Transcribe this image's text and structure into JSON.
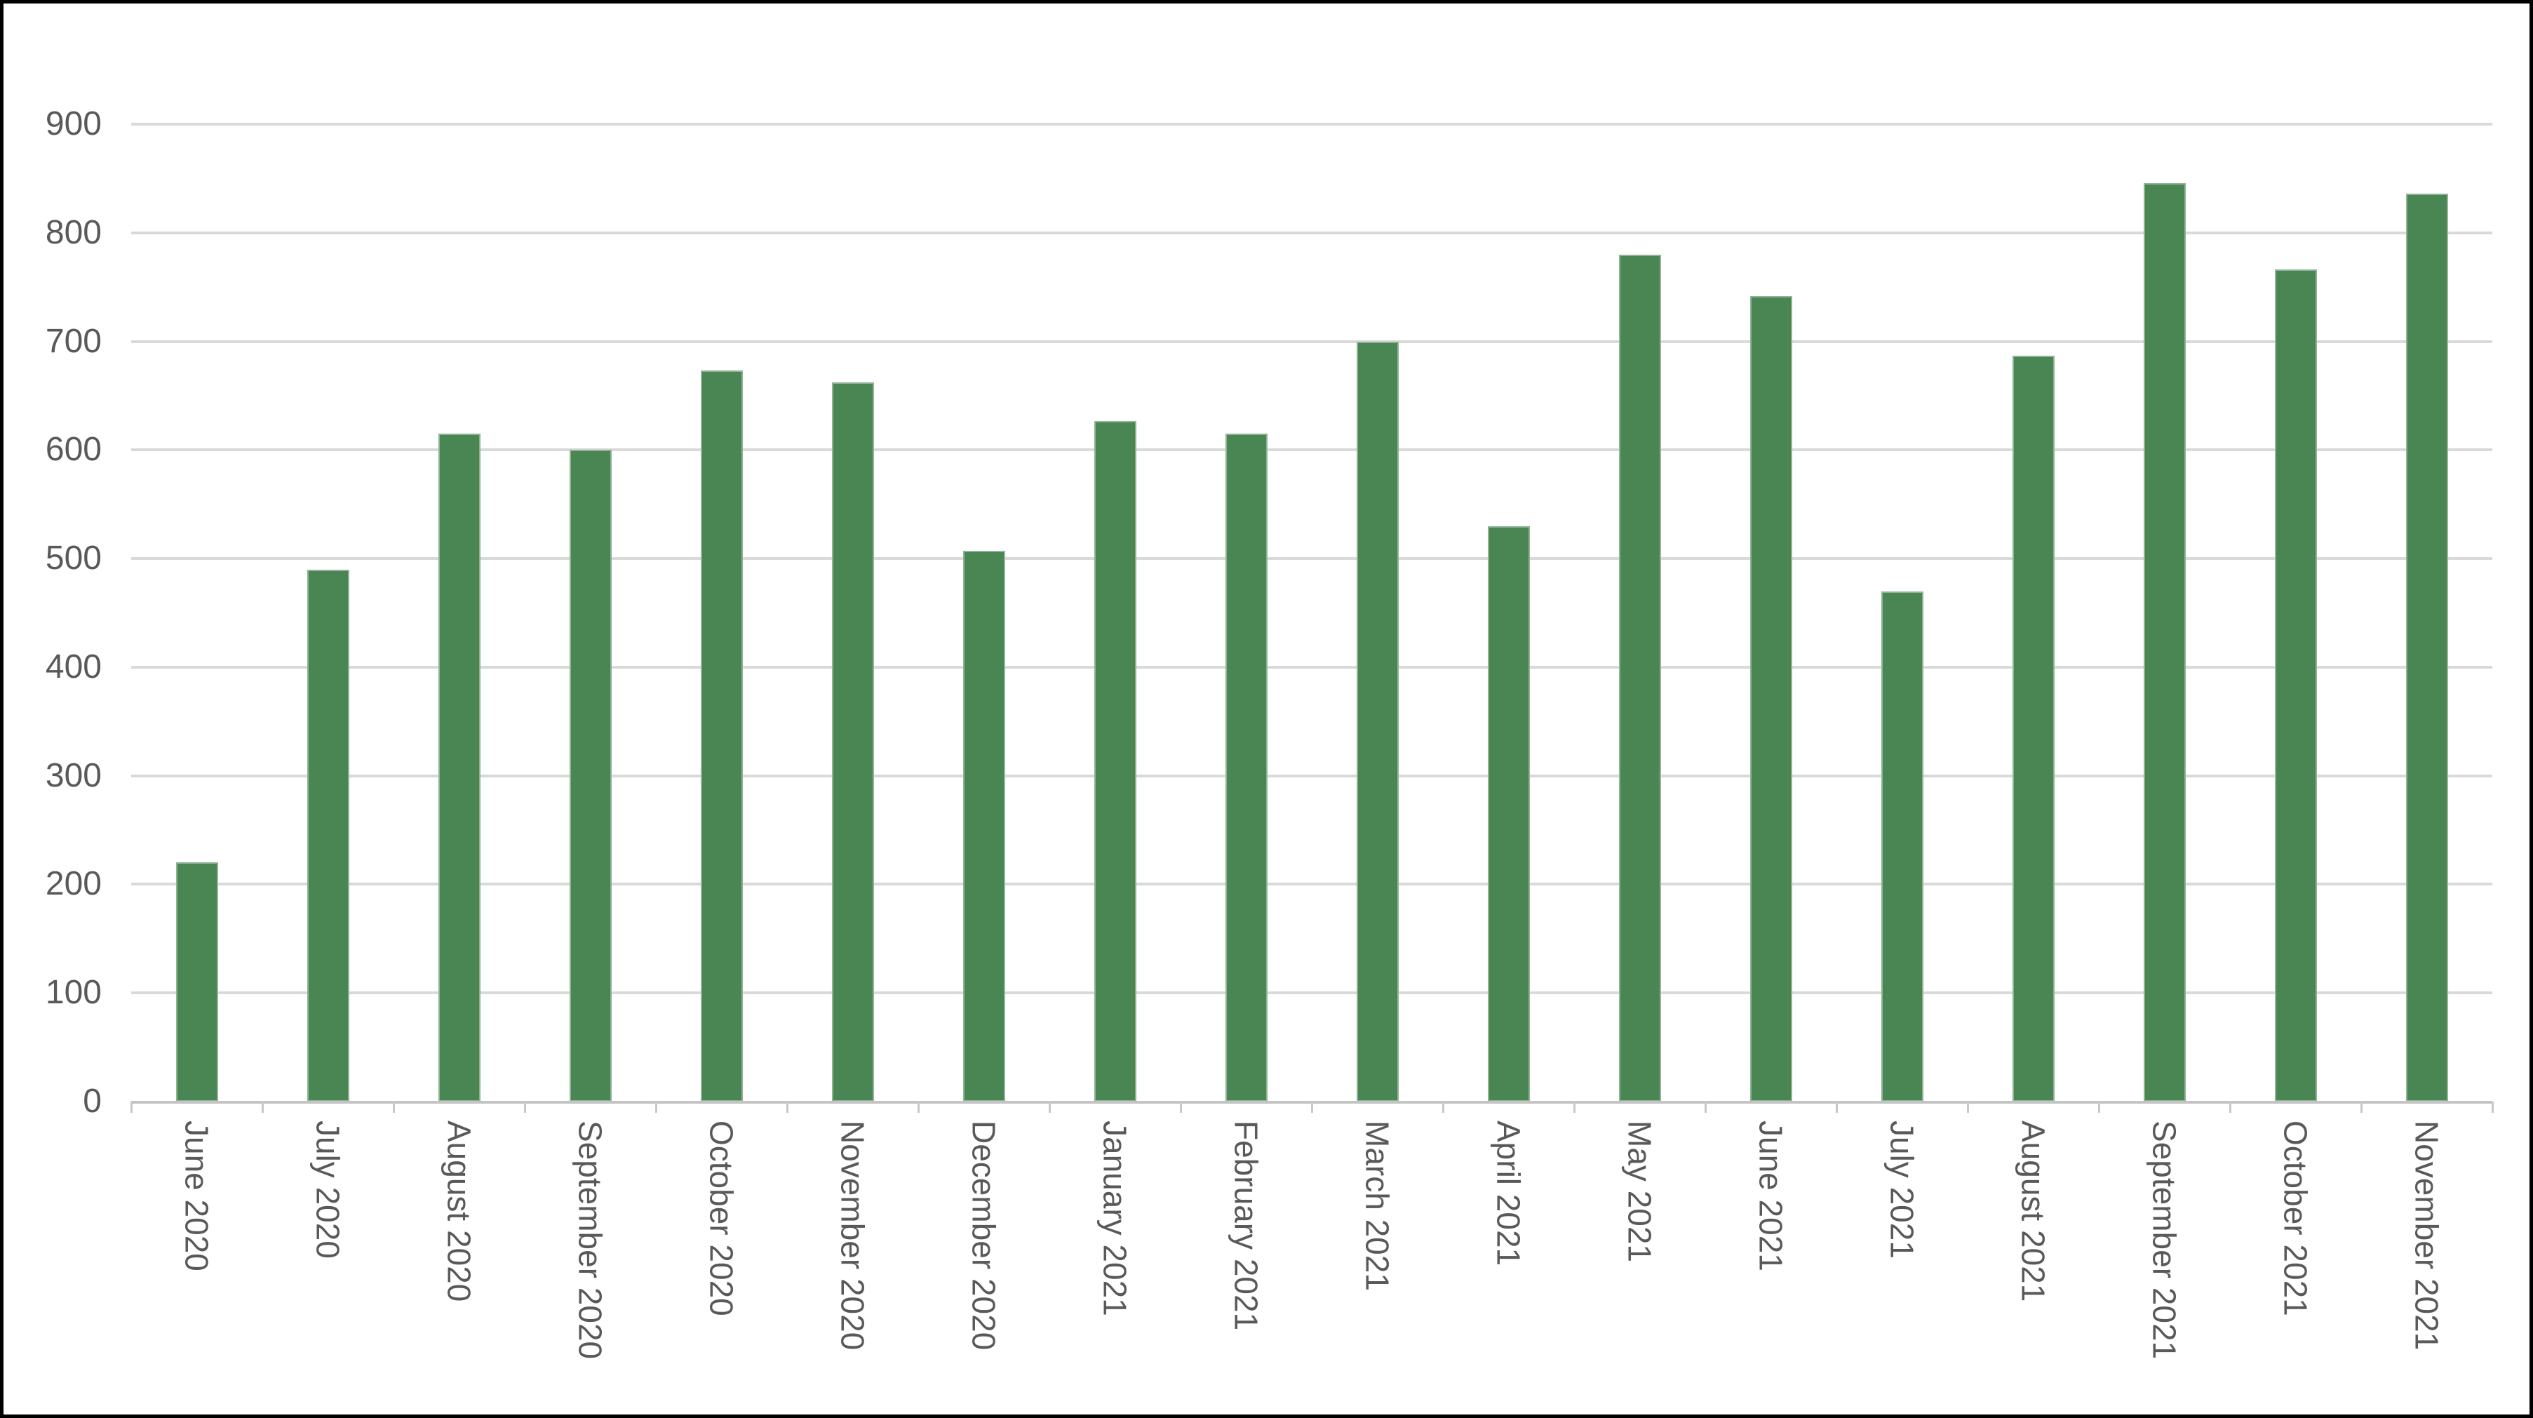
{
  "chart_data": {
    "type": "bar",
    "title": "",
    "xlabel": "",
    "ylabel": "",
    "categories": [
      "June 2020",
      "July 2020",
      "August 2020",
      "September 2020",
      "October 2020",
      "November 2020",
      "December 2020",
      "January 2021",
      "February 2021",
      "March 2021",
      "April 2021",
      "May 2021",
      "June 2021",
      "July 2021",
      "August 2021",
      "September 2021",
      "October 2021",
      "November 2021"
    ],
    "values": [
      220,
      490,
      615,
      600,
      673,
      662,
      507,
      627,
      615,
      700,
      530,
      780,
      742,
      470,
      687,
      846,
      766,
      836
    ],
    "ylim": [
      0,
      900
    ],
    "ytick_interval": 100,
    "yticks": [
      0,
      100,
      200,
      300,
      400,
      500,
      600,
      700,
      800,
      900
    ],
    "grid": true,
    "legend": false,
    "colors": {
      "bar_fill": "#4a8554",
      "gridline": "#d9d9d9",
      "axis_line": "#c4c4c4",
      "tick_mark": "#c8c8c8",
      "tick_label": "#595959",
      "background": "#ffffff",
      "frame_border": "#000000"
    }
  }
}
